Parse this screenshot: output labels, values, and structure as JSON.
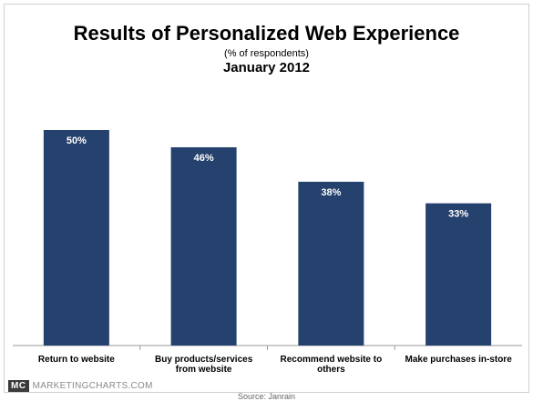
{
  "header": {
    "title": "Results of Personalized Web Experience",
    "subtitle": "(% of respondents)",
    "period": "January 2012"
  },
  "footer": {
    "logo_badge": "MC",
    "logo_text": "MARKETINGCHARTS.COM",
    "source": "Source: Janrain"
  },
  "colors": {
    "bar": "#25416d",
    "axis": "#9a9a9a"
  },
  "chart_data": {
    "type": "bar",
    "title": "Results of Personalized Web Experience",
    "categories": [
      [
        "Return to website"
      ],
      [
        "Buy products/services",
        "from website"
      ],
      [
        "Recommend website to",
        "others"
      ],
      [
        "Make purchases in-store"
      ]
    ],
    "values": [
      50,
      46,
      38,
      33
    ],
    "data_labels": [
      "50%",
      "46%",
      "38%",
      "33%"
    ],
    "ylim": [
      0,
      50
    ],
    "grid": false,
    "legend": "none"
  }
}
